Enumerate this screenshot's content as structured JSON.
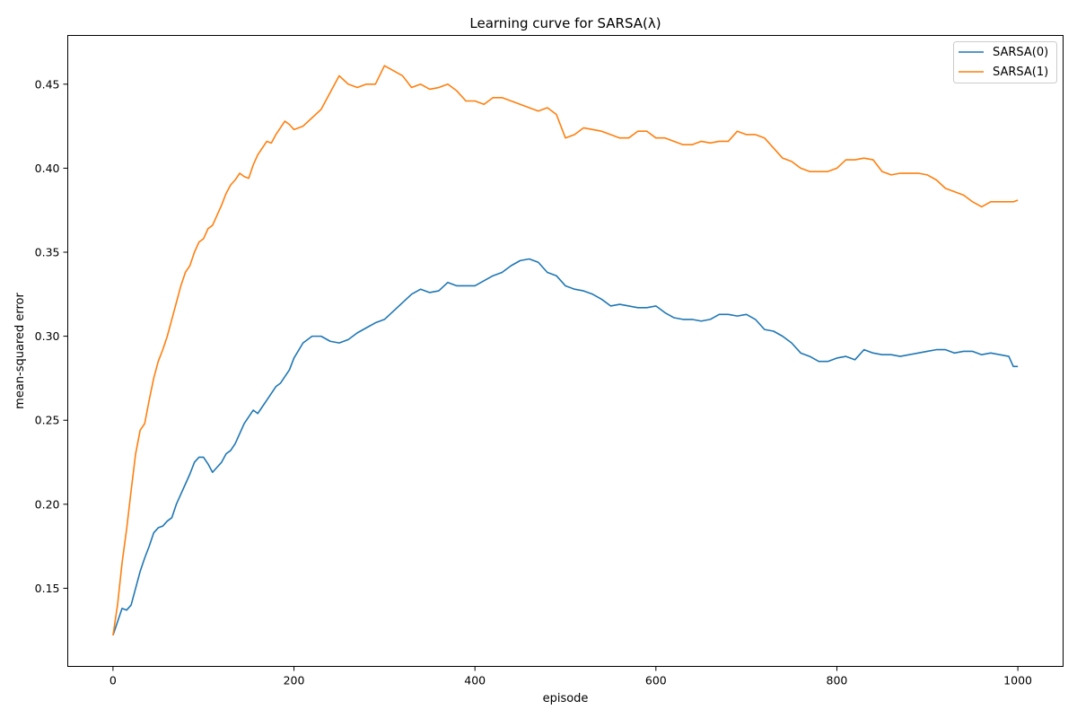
{
  "chart_data": {
    "type": "line",
    "title": "Learning curve for SARSA(λ)",
    "xlabel": "episode",
    "ylabel": "mean-squared error",
    "xlim": [
      -50,
      1050
    ],
    "ylim": [
      0.1035,
      0.479
    ],
    "xticks": [
      0,
      200,
      400,
      600,
      800,
      1000
    ],
    "yticks": [
      0.15,
      0.2,
      0.25,
      0.3,
      0.35,
      0.4,
      0.45
    ],
    "ytick_labels": [
      "0.15",
      "0.20",
      "0.25",
      "0.30",
      "0.35",
      "0.40",
      "0.45"
    ],
    "xtick_labels": [
      "0",
      "200",
      "400",
      "600",
      "800",
      "1000"
    ],
    "grid": false,
    "legend": "top-right",
    "series": [
      {
        "name": "SARSA(0)",
        "color": "#1f77b4",
        "x": [
          0,
          5,
          10,
          15,
          20,
          25,
          30,
          35,
          40,
          45,
          50,
          55,
          60,
          65,
          70,
          75,
          80,
          85,
          90,
          95,
          100,
          105,
          110,
          115,
          120,
          125,
          130,
          135,
          140,
          145,
          150,
          155,
          160,
          165,
          170,
          175,
          180,
          185,
          190,
          195,
          200,
          210,
          220,
          230,
          240,
          250,
          260,
          270,
          280,
          290,
          300,
          310,
          320,
          330,
          340,
          350,
          360,
          370,
          380,
          390,
          400,
          410,
          420,
          430,
          440,
          450,
          460,
          470,
          480,
          490,
          500,
          510,
          520,
          530,
          540,
          550,
          560,
          570,
          580,
          590,
          600,
          610,
          620,
          630,
          640,
          650,
          660,
          670,
          680,
          690,
          700,
          710,
          720,
          730,
          740,
          750,
          760,
          770,
          780,
          790,
          800,
          810,
          820,
          830,
          840,
          850,
          860,
          870,
          880,
          890,
          900,
          910,
          920,
          930,
          940,
          950,
          960,
          970,
          980,
          990,
          995,
          1000
        ],
        "y": [
          0.122,
          0.13,
          0.138,
          0.137,
          0.14,
          0.15,
          0.16,
          0.168,
          0.175,
          0.183,
          0.186,
          0.187,
          0.19,
          0.192,
          0.2,
          0.206,
          0.212,
          0.218,
          0.225,
          0.228,
          0.228,
          0.224,
          0.219,
          0.222,
          0.225,
          0.23,
          0.232,
          0.236,
          0.242,
          0.248,
          0.252,
          0.256,
          0.254,
          0.258,
          0.262,
          0.266,
          0.27,
          0.272,
          0.276,
          0.28,
          0.287,
          0.296,
          0.3,
          0.3,
          0.297,
          0.296,
          0.298,
          0.302,
          0.305,
          0.308,
          0.31,
          0.315,
          0.32,
          0.325,
          0.328,
          0.326,
          0.327,
          0.332,
          0.33,
          0.33,
          0.33,
          0.333,
          0.336,
          0.338,
          0.342,
          0.345,
          0.346,
          0.344,
          0.338,
          0.336,
          0.33,
          0.328,
          0.327,
          0.325,
          0.322,
          0.318,
          0.319,
          0.318,
          0.317,
          0.317,
          0.318,
          0.314,
          0.311,
          0.31,
          0.31,
          0.309,
          0.31,
          0.313,
          0.313,
          0.312,
          0.313,
          0.31,
          0.304,
          0.303,
          0.3,
          0.296,
          0.29,
          0.288,
          0.285,
          0.285,
          0.287,
          0.288,
          0.286,
          0.292,
          0.29,
          0.289,
          0.289,
          0.288,
          0.289,
          0.29,
          0.291,
          0.292,
          0.292,
          0.29,
          0.291,
          0.291,
          0.289,
          0.29,
          0.289,
          0.288,
          0.282,
          0.282
        ]
      },
      {
        "name": "SARSA(1)",
        "color": "#ff7f0e",
        "x": [
          0,
          5,
          10,
          15,
          20,
          25,
          30,
          35,
          40,
          45,
          50,
          55,
          60,
          65,
          70,
          75,
          80,
          85,
          90,
          95,
          100,
          105,
          110,
          115,
          120,
          125,
          130,
          135,
          140,
          145,
          150,
          155,
          160,
          165,
          170,
          175,
          180,
          185,
          190,
          195,
          200,
          210,
          220,
          230,
          240,
          250,
          260,
          270,
          280,
          290,
          300,
          310,
          320,
          330,
          340,
          350,
          360,
          370,
          380,
          390,
          400,
          410,
          420,
          430,
          440,
          450,
          460,
          470,
          480,
          490,
          500,
          510,
          520,
          530,
          540,
          550,
          560,
          570,
          580,
          590,
          600,
          610,
          620,
          630,
          640,
          650,
          660,
          670,
          680,
          690,
          700,
          710,
          720,
          730,
          740,
          750,
          760,
          770,
          780,
          790,
          800,
          810,
          820,
          830,
          840,
          850,
          860,
          870,
          880,
          890,
          900,
          910,
          920,
          930,
          940,
          950,
          960,
          970,
          980,
          990,
          995,
          1000
        ],
        "y": [
          0.122,
          0.14,
          0.165,
          0.185,
          0.208,
          0.23,
          0.244,
          0.248,
          0.262,
          0.275,
          0.285,
          0.292,
          0.3,
          0.31,
          0.32,
          0.33,
          0.338,
          0.342,
          0.35,
          0.356,
          0.358,
          0.364,
          0.366,
          0.372,
          0.378,
          0.385,
          0.39,
          0.393,
          0.397,
          0.395,
          0.394,
          0.402,
          0.408,
          0.412,
          0.416,
          0.415,
          0.42,
          0.424,
          0.428,
          0.426,
          0.423,
          0.425,
          0.43,
          0.435,
          0.445,
          0.455,
          0.45,
          0.448,
          0.45,
          0.45,
          0.461,
          0.458,
          0.455,
          0.448,
          0.45,
          0.447,
          0.448,
          0.45,
          0.446,
          0.44,
          0.44,
          0.438,
          0.442,
          0.442,
          0.44,
          0.438,
          0.436,
          0.434,
          0.436,
          0.432,
          0.418,
          0.42,
          0.424,
          0.423,
          0.422,
          0.42,
          0.418,
          0.418,
          0.422,
          0.422,
          0.418,
          0.418,
          0.416,
          0.414,
          0.414,
          0.416,
          0.415,
          0.416,
          0.416,
          0.422,
          0.42,
          0.42,
          0.418,
          0.412,
          0.406,
          0.404,
          0.4,
          0.398,
          0.398,
          0.398,
          0.4,
          0.405,
          0.405,
          0.406,
          0.405,
          0.398,
          0.396,
          0.397,
          0.397,
          0.397,
          0.396,
          0.393,
          0.388,
          0.386,
          0.384,
          0.38,
          0.377,
          0.38,
          0.38,
          0.38,
          0.38,
          0.381
        ]
      }
    ]
  }
}
